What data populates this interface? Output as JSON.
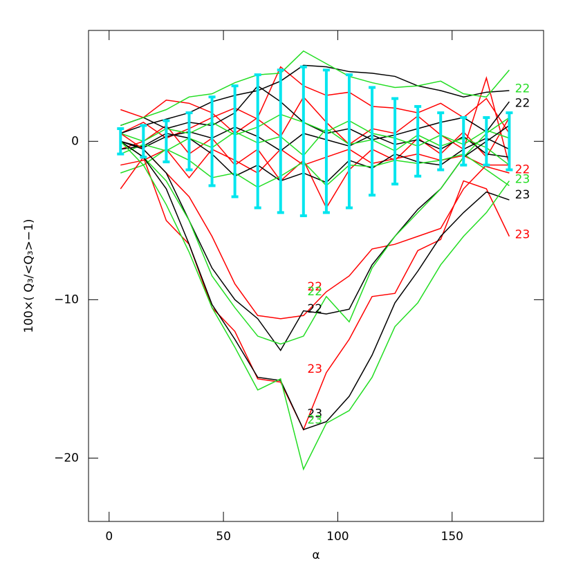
{
  "chart_data": {
    "type": "line",
    "xlabel": "α",
    "ylabel": "100×( Q₃/<Q₃>−1)",
    "x": [
      5,
      15,
      25,
      35,
      45,
      55,
      65,
      75,
      85,
      95,
      105,
      115,
      125,
      135,
      145,
      155,
      165,
      175
    ],
    "xlim": [
      -9,
      190
    ],
    "ylim": [
      -24,
      7
    ],
    "xticks": [
      0,
      50,
      100,
      150
    ],
    "yticks": [
      {
        "value": -20,
        "label": "−20"
      },
      {
        "value": -10,
        "label": "−10"
      },
      0
    ],
    "series": [
      {
        "color": "#ff0000",
        "values": [
          2,
          1.5,
          2.6,
          2.4,
          1.8,
          0.5,
          1.5,
          4.7,
          3.5,
          2.9,
          3.1,
          2.2,
          2.1,
          1.8,
          2.4,
          1.5,
          2.7,
          0.5
        ]
      },
      {
        "color": "#ff0000",
        "values": [
          -1.5,
          -1.2,
          -0.5,
          -2.3,
          -0.5,
          -1.2,
          -2,
          -0.5,
          -1.5,
          -1,
          -0.5,
          -1.4,
          -1.1,
          -0.8,
          -1.2,
          -0.9,
          -1.6,
          -2
        ]
      },
      {
        "color": "#ff0000",
        "values": [
          0.5,
          1.2,
          0.2,
          0.8,
          1.5,
          2.1,
          1.4,
          0.3,
          2.8,
          1.2,
          -0.2,
          0.8,
          0.5,
          1.6,
          0.4,
          -0.5,
          4,
          -1.5
        ]
      },
      {
        "color": "#ff0000",
        "values": [
          -0.5,
          0,
          1,
          -0.8,
          0.2,
          -1.5,
          -0.5,
          -2.5,
          -1.2,
          -4.2,
          -1.8,
          -0.5,
          -1.2,
          0.2,
          -0.8,
          0.6,
          -1,
          1.5
        ]
      },
      {
        "color": "#000000",
        "values": [
          0.5,
          1,
          1.4,
          1.8,
          2.5,
          2.9,
          3.2,
          3.8,
          4.8,
          4.7,
          4.4,
          4.3,
          4.1,
          3.5,
          3.2,
          2.8,
          3.1,
          3.2
        ]
      },
      {
        "color": "#000000",
        "values": [
          -0.5,
          -0.3,
          0.5,
          0.2,
          -0.8,
          -2.2,
          -1.5,
          -2.5,
          -2,
          -2.6,
          -1.2,
          -1.7,
          -0.8,
          -1.3,
          -1.5,
          -0.5,
          0.2,
          -0.5
        ]
      },
      {
        "color": "#000000",
        "values": [
          1,
          1.5,
          0.8,
          1.2,
          1,
          1.8,
          3.5,
          2.5,
          1.2,
          0.5,
          0.8,
          0.1,
          0.4,
          0.8,
          1.2,
          1.5,
          0.6,
          2.5
        ]
      },
      {
        "color": "#000000",
        "values": [
          0,
          -0.4,
          0.3,
          0.6,
          0.2,
          0.9,
          0.3,
          -0.6,
          0.5,
          0.1,
          -0.3,
          0.4,
          -0.2,
          0.1,
          -0.5,
          0.3,
          -0.8,
          -1
        ]
      },
      {
        "color": "#22dd22",
        "values": [
          1,
          1.5,
          2,
          2.8,
          3,
          3.7,
          4.2,
          4.3,
          5.7,
          4.9,
          4.1,
          3.7,
          3.4,
          3.5,
          3.8,
          3,
          2.8,
          4.5
        ]
      },
      {
        "color": "#22dd22",
        "values": [
          -2,
          -1.5,
          -0.5,
          -1.2,
          -2.3,
          -2,
          -2.9,
          -2.2,
          -1.3,
          -2.8,
          -1.5,
          -1.6,
          -1.2,
          -1.4,
          -1.2,
          -0.8,
          -1.8,
          -2.8
        ]
      },
      {
        "color": "#22dd22",
        "values": [
          0.5,
          0,
          0.8,
          0.5,
          1.2,
          0.4,
          0.9,
          1.7,
          1.2,
          0.6,
          1.3,
          0.5,
          0.2,
          -0.3,
          0.4,
          -0.2,
          0.7,
          0.2
        ]
      },
      {
        "color": "#22dd22",
        "values": [
          -0.8,
          -0.2,
          -0.6,
          0.2,
          -0.4,
          0.6,
          -0.1,
          0.3,
          -0.9,
          0.8,
          -0.2,
          0.1,
          -0.6,
          0.4,
          -0.3,
          0.2,
          -0.4,
          -1.5
        ]
      },
      {
        "color": "#ff0000",
        "values": [
          0.5,
          -0.5,
          -2,
          -3.5,
          -6,
          -9,
          -11,
          -11.2,
          -11,
          -9.5,
          -8.5,
          -6.8,
          -6.5,
          -6,
          -5.5,
          -3,
          -1.5,
          -1.5
        ]
      },
      {
        "color": "#000000",
        "values": [
          0,
          -0.5,
          -2,
          -5,
          -8,
          -10,
          -11.2,
          -13.2,
          -10.7,
          -10.9,
          -10.6,
          -7.8,
          -6,
          -4.3,
          -3,
          -1,
          0,
          1
        ]
      },
      {
        "color": "#22dd22",
        "values": [
          0,
          -1,
          -2.5,
          -5,
          -8.5,
          -10.5,
          -12.3,
          -12.8,
          -12.3,
          -9.8,
          -11.4,
          -8,
          -6,
          -4.5,
          -3,
          -1,
          0.5,
          1.5
        ]
      },
      {
        "color": "#ff0000",
        "values": [
          -3,
          -1,
          -5,
          -6.5,
          -10.5,
          -12,
          -15,
          -15.2,
          -18.2,
          -14.6,
          -12.5,
          -9.8,
          -9.6,
          -6.9,
          -6.2,
          -2.5,
          -3,
          -6
        ]
      },
      {
        "color": "#000000",
        "values": [
          0,
          -1,
          -3,
          -6.5,
          -10.3,
          -12.5,
          -14.9,
          -15.1,
          -18.2,
          -17.7,
          -16.1,
          -13.5,
          -10.2,
          -8.2,
          -6,
          -4.5,
          -3.2,
          -3.7
        ]
      },
      {
        "color": "#22dd22",
        "values": [
          0,
          -1.5,
          -4,
          -7,
          -10.5,
          -13,
          -15.7,
          -15,
          -20.7,
          -17.8,
          -17,
          -14.9,
          -11.7,
          -10.2,
          -7.8,
          -6,
          -4.5,
          -2.5
        ]
      }
    ],
    "errorbars": {
      "color": "#00e5ee",
      "values": [
        0,
        0,
        0,
        0,
        0,
        0,
        0,
        0,
        0,
        0,
        0,
        0,
        0,
        0,
        0,
        0,
        0,
        0
      ],
      "errors": [
        0.8,
        1.0,
        1.3,
        1.8,
        2.8,
        3.5,
        4.2,
        4.5,
        4.7,
        4.5,
        4.2,
        3.4,
        2.7,
        2.2,
        1.8,
        1.5,
        1.5,
        1.8
      ]
    },
    "annotations": [
      {
        "text": "22",
        "x": 177.5,
        "y": 3.3,
        "color": "#22dd22"
      },
      {
        "text": "22",
        "x": 177.5,
        "y": 2.4,
        "color": "#000000"
      },
      {
        "text": "22",
        "x": 177.5,
        "y": -1.8,
        "color": "#ff0000"
      },
      {
        "text": "23",
        "x": 177.5,
        "y": -2.4,
        "color": "#22dd22"
      },
      {
        "text": "23",
        "x": 177.5,
        "y": -3.4,
        "color": "#000000"
      },
      {
        "text": "23",
        "x": 177.5,
        "y": -5.9,
        "color": "#ff0000"
      },
      {
        "text": "22",
        "x": 86.7,
        "y": -9.2,
        "color": "#ff0000"
      },
      {
        "text": "22",
        "x": 86.7,
        "y": -9.5,
        "color": "#22dd22"
      },
      {
        "text": "22",
        "x": 86.7,
        "y": -10.6,
        "color": "#000000"
      },
      {
        "text": "23",
        "x": 86.7,
        "y": -14.4,
        "color": "#ff0000"
      },
      {
        "text": "23",
        "x": 86.7,
        "y": -17.2,
        "color": "#000000"
      },
      {
        "text": "23",
        "x": 86.7,
        "y": -17.6,
        "color": "#22dd22"
      }
    ]
  }
}
